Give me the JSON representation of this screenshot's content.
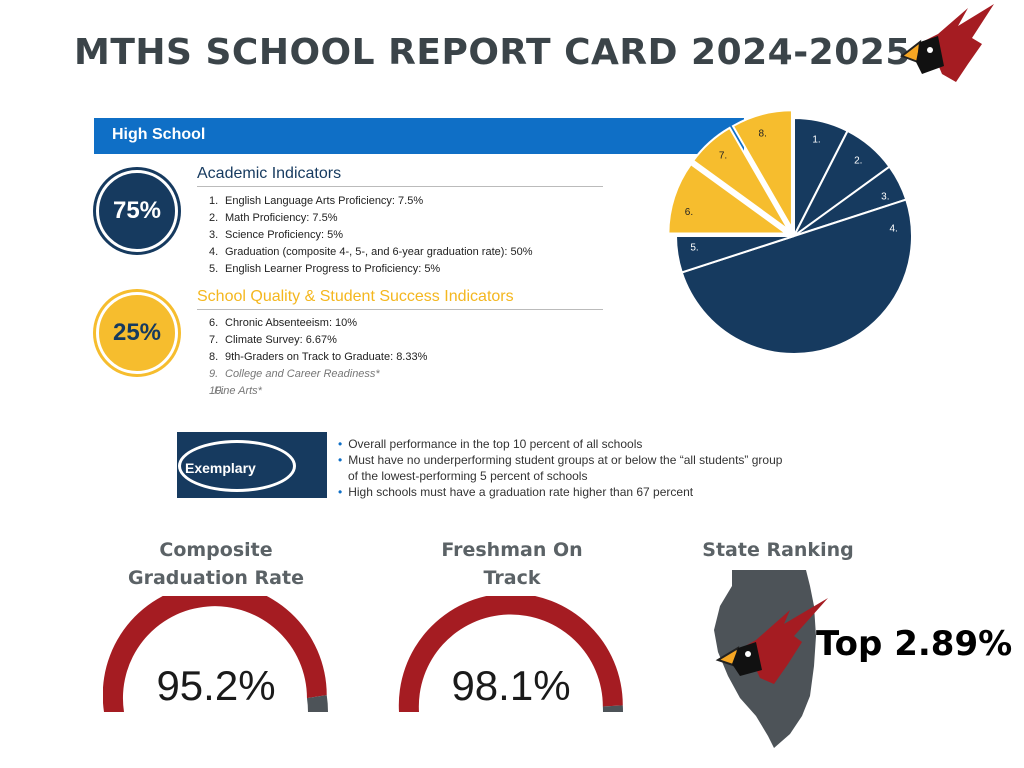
{
  "title": "MTHS SCHOOL REPORT CARD 2024-2025",
  "colors": {
    "navy": "#163a5f",
    "gold": "#f6bd2e",
    "blue": "#0f6fc6",
    "red": "#a51c22",
    "gray": "#4d5358"
  },
  "high_school": {
    "bar_label": "High School",
    "academic": {
      "percent": "75%",
      "heading": "Academic Indicators",
      "items": [
        {
          "num": "1.",
          "text": "English Language Arts Proficiency: 7.5%"
        },
        {
          "num": "2.",
          "text": "Math Proficiency: 7.5%"
        },
        {
          "num": "3.",
          "text": "Science Proficiency: 5%"
        },
        {
          "num": "4.",
          "text": "Graduation (composite 4-, 5-, and 6-year graduation rate): 50%"
        },
        {
          "num": "5.",
          "text": "English Learner Progress to Proficiency: 5%"
        }
      ]
    },
    "quality": {
      "percent": "25%",
      "heading": "School Quality & Student Success Indicators",
      "items": [
        {
          "num": "6.",
          "text": "Chronic Absenteeism: 10%"
        },
        {
          "num": "7.",
          "text": "Climate Survey: 6.67%"
        },
        {
          "num": "8.",
          "text": "9th-Graders on Track to Graduate: 8.33%"
        },
        {
          "num": "9.",
          "text": "College and Career Readiness*"
        },
        {
          "num": "10.",
          "text": "Fine Arts*"
        }
      ]
    }
  },
  "chart_data": {
    "type": "pie",
    "title": "",
    "slices": [
      {
        "label": "1.",
        "value": 7.5,
        "group": "academic"
      },
      {
        "label": "2.",
        "value": 7.5,
        "group": "academic"
      },
      {
        "label": "3.",
        "value": 5,
        "group": "academic"
      },
      {
        "label": "4.",
        "value": 50,
        "group": "academic"
      },
      {
        "label": "5.",
        "value": 5,
        "group": "academic"
      },
      {
        "label": "6.",
        "value": 10,
        "group": "quality"
      },
      {
        "label": "7.",
        "value": 6.67,
        "group": "quality"
      },
      {
        "label": "8.",
        "value": 8.33,
        "group": "quality"
      }
    ]
  },
  "exemplary": {
    "label": "Exemplary",
    "bullets": [
      "Overall performance in the top 10 percent of all schools",
      "Must have no underperforming student groups at or below the “all students” group",
      "of the lowest-performing 5 percent of schools",
      "High schools must have a graduation rate higher than 67 percent"
    ]
  },
  "stats": {
    "graduation": {
      "heading_line1": "Composite",
      "heading_line2": "Graduation Rate",
      "value": "95.2%",
      "percent": 95.2
    },
    "freshman": {
      "heading_line1": "Freshman On",
      "heading_line2": "Track",
      "value": "98.1%",
      "percent": 98.1
    },
    "ranking": {
      "heading": "State Ranking",
      "value": "Top 2.89%"
    }
  }
}
